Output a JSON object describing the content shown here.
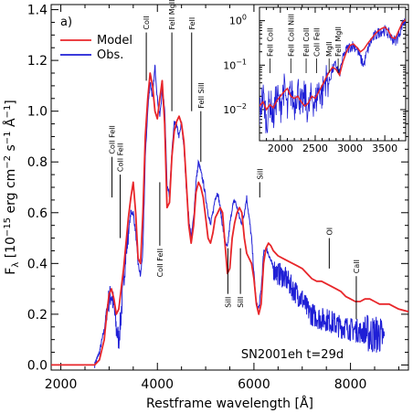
{
  "chart_data": [
    {
      "type": "line",
      "panel_label": "a)",
      "annotation": "SN2001eh  t=29d",
      "xlabel": "Restframe wavelength [Å]",
      "ylabel": "F",
      "ylabel_subscript": "λ",
      "ylabel_units": "[10",
      "ylabel_exp1": "−15",
      "ylabel_units2": " erg cm",
      "ylabel_exp2": "−2",
      "ylabel_units3": " s",
      "ylabel_exp3": "−1",
      "ylabel_units4": " Å",
      "ylabel_exp4": "−1",
      "ylabel_close": "]",
      "xlim": [
        1800,
        9200
      ],
      "ylim": [
        -0.02,
        1.42
      ],
      "x_ticks": [
        2000,
        4000,
        6000,
        8000
      ],
      "x_tick_labels": [
        "2000",
        "4000",
        "6000",
        "8000"
      ],
      "y_ticks": [
        0.0,
        0.2,
        0.4,
        0.6,
        0.8,
        1.0,
        1.2,
        1.4
      ],
      "y_tick_labels": [
        "0.0",
        "0.2",
        "0.4",
        "0.6",
        "0.8",
        "1.0",
        "1.2",
        "1.4"
      ],
      "legend_position": "top-left",
      "colors": {
        "model": "#e8262a",
        "obs": "#1f1fd6"
      },
      "series": [
        {
          "name": "Model",
          "x": [
            1800,
            2700,
            2800,
            2900,
            2950,
            3000,
            3050,
            3100,
            3150,
            3200,
            3250,
            3300,
            3350,
            3400,
            3450,
            3500,
            3550,
            3600,
            3650,
            3700,
            3750,
            3800,
            3850,
            3900,
            3950,
            4000,
            4050,
            4100,
            4150,
            4200,
            4250,
            4300,
            4350,
            4400,
            4450,
            4500,
            4550,
            4600,
            4650,
            4700,
            4750,
            4800,
            4850,
            4900,
            4950,
            5000,
            5050,
            5100,
            5150,
            5200,
            5250,
            5300,
            5350,
            5400,
            5450,
            5500,
            5550,
            5600,
            5650,
            5700,
            5750,
            5800,
            5850,
            5900,
            5950,
            6000,
            6050,
            6100,
            6150,
            6200,
            6250,
            6300,
            6350,
            6400,
            6500,
            6600,
            6700,
            6800,
            6900,
            7000,
            7100,
            7200,
            7300,
            7400,
            7500,
            7600,
            7700,
            7800,
            7900,
            8000,
            8100,
            8200,
            8300,
            8400,
            8500,
            8600,
            8700,
            8800,
            8900,
            9000,
            9200
          ],
          "values": [
            0.0,
            0.0,
            0.02,
            0.1,
            0.2,
            0.28,
            0.3,
            0.26,
            0.2,
            0.22,
            0.3,
            0.38,
            0.48,
            0.58,
            0.66,
            0.72,
            0.6,
            0.42,
            0.4,
            0.6,
            0.9,
            1.05,
            1.15,
            1.1,
            1.0,
            0.97,
            1.05,
            1.12,
            0.95,
            0.62,
            0.64,
            0.82,
            0.92,
            0.96,
            0.98,
            0.95,
            0.88,
            0.72,
            0.55,
            0.48,
            0.55,
            0.68,
            0.72,
            0.7,
            0.66,
            0.58,
            0.5,
            0.48,
            0.52,
            0.58,
            0.6,
            0.62,
            0.6,
            0.48,
            0.36,
            0.38,
            0.5,
            0.56,
            0.6,
            0.62,
            0.6,
            0.5,
            0.44,
            0.42,
            0.4,
            0.34,
            0.24,
            0.2,
            0.24,
            0.4,
            0.46,
            0.48,
            0.47,
            0.45,
            0.43,
            0.42,
            0.41,
            0.4,
            0.39,
            0.38,
            0.36,
            0.34,
            0.33,
            0.33,
            0.32,
            0.31,
            0.3,
            0.29,
            0.27,
            0.26,
            0.25,
            0.25,
            0.26,
            0.26,
            0.25,
            0.24,
            0.24,
            0.24,
            0.23,
            0.22,
            0.21
          ]
        },
        {
          "name": "Obs.",
          "x": [
            2700,
            2800,
            2900,
            2950,
            3000,
            3050,
            3100,
            3150,
            3200,
            3250,
            3300,
            3350,
            3400,
            3450,
            3500,
            3550,
            3600,
            3650,
            3700,
            3750,
            3800,
            3850,
            3900,
            3950,
            4000,
            4050,
            4100,
            4150,
            4200,
            4250,
            4300,
            4350,
            4400,
            4450,
            4500,
            4550,
            4600,
            4650,
            4700,
            4750,
            4800,
            4850,
            4900,
            4950,
            5000,
            5050,
            5100,
            5150,
            5200,
            5250,
            5300,
            5350,
            5400,
            5450,
            5500,
            5550,
            5600,
            5650,
            5700,
            5750,
            5800,
            5850,
            5900,
            5950,
            6000,
            6050,
            6100,
            6150,
            6200,
            6250,
            6300,
            6350,
            6400,
            6500,
            6600,
            6700,
            6800,
            6900,
            7000,
            7100,
            7200,
            7300,
            7400,
            7500,
            7600,
            7700,
            7800,
            7900,
            8000,
            8100,
            8200,
            8300,
            8400,
            8500,
            8600,
            8700
          ],
          "values": [
            0.0,
            0.05,
            0.14,
            0.22,
            0.26,
            0.28,
            0.23,
            0.14,
            0.1,
            0.2,
            0.34,
            0.44,
            0.52,
            0.6,
            0.6,
            0.52,
            0.4,
            0.35,
            0.45,
            0.82,
            1.0,
            1.12,
            1.05,
            1.18,
            1.05,
            0.98,
            1.08,
            1.02,
            0.72,
            0.66,
            0.84,
            0.95,
            0.94,
            0.9,
            0.95,
            0.86,
            0.7,
            0.58,
            0.5,
            0.58,
            0.72,
            0.8,
            0.76,
            0.72,
            0.66,
            0.6,
            0.55,
            0.6,
            0.66,
            0.68,
            0.62,
            0.55,
            0.48,
            0.46,
            0.55,
            0.62,
            0.65,
            0.62,
            0.58,
            0.56,
            0.6,
            0.66,
            0.58,
            0.5,
            0.36,
            0.24,
            0.22,
            0.3,
            0.44,
            0.46,
            0.44,
            0.41,
            0.38,
            0.36,
            0.35,
            0.33,
            0.3,
            0.28,
            0.26,
            0.22,
            0.2,
            0.19,
            0.18,
            0.18,
            0.17,
            0.16,
            0.15,
            0.15,
            0.14,
            0.14,
            0.13,
            0.13,
            0.12,
            0.12,
            0.12,
            0.1
          ]
        }
      ],
      "line_ids": [
        {
          "label": "CoII FeII",
          "x": 3060,
          "y_top": 0.82,
          "y_bottom": 0.66,
          "side": "above"
        },
        {
          "label": "CoII FeII",
          "x": 3230,
          "y_top": 0.75,
          "y_bottom": 0.5,
          "side": "above"
        },
        {
          "label": "CoII",
          "x": 3770,
          "y_top": 1.31,
          "y_bottom": 1.12,
          "side": "above"
        },
        {
          "label": "FeII MgII",
          "x": 4300,
          "y_top": 1.31,
          "y_bottom": 1.0,
          "side": "above"
        },
        {
          "label": "FeII",
          "x": 4710,
          "y_top": 1.31,
          "y_bottom": 1.0,
          "side": "above"
        },
        {
          "label": "FeII SiII",
          "x": 4900,
          "y_top": 1.0,
          "y_bottom": 0.8,
          "side": "above"
        },
        {
          "label": "SiII",
          "x": 6120,
          "y_top": 0.72,
          "y_bottom": 0.66,
          "side": "above"
        },
        {
          "label": "CoII FeII",
          "x": 4050,
          "y_top": 0.47,
          "y_bottom": 0.72,
          "side": "below"
        },
        {
          "label": "SiII",
          "x": 5460,
          "y_top": 0.28,
          "y_bottom": 0.46,
          "side": "below"
        },
        {
          "label": "SiII",
          "x": 5720,
          "y_top": 0.28,
          "y_bottom": 0.46,
          "side": "below"
        },
        {
          "label": "OI",
          "x": 7560,
          "y_top": 0.5,
          "y_bottom": 0.38,
          "side": "above"
        },
        {
          "label": "CaII",
          "x": 8120,
          "y_top": 0.35,
          "y_bottom": 0.18,
          "side": "above"
        }
      ]
    },
    {
      "type": "line",
      "inset": true,
      "xlim": [
        1700,
        3800
      ],
      "ylog": true,
      "ylim": [
        0.002,
        2.0
      ],
      "x_ticks": [
        2000,
        2500,
        3000,
        3500
      ],
      "x_tick_labels": [
        "2000",
        "2500",
        "3000",
        "3500"
      ],
      "y_ticks": [
        0.01,
        0.1,
        1
      ],
      "y_tick_labels": [
        "10",
        "10",
        "10"
      ],
      "y_tick_exps": [
        "−2",
        "−1",
        "0"
      ],
      "series": [
        {
          "name": "Model",
          "x": [
            1700,
            1750,
            1800,
            1850,
            1900,
            1950,
            2000,
            2050,
            2100,
            2150,
            2200,
            2250,
            2300,
            2350,
            2400,
            2450,
            2500,
            2550,
            2600,
            2650,
            2700,
            2750,
            2800,
            2850,
            2900,
            2950,
            3000,
            3050,
            3100,
            3150,
            3200,
            3250,
            3300,
            3350,
            3400,
            3450,
            3500,
            3550,
            3600,
            3650,
            3700,
            3750,
            3800
          ],
          "values": [
            0.012,
            0.015,
            0.01,
            0.013,
            0.011,
            0.016,
            0.02,
            0.025,
            0.03,
            0.02,
            0.018,
            0.02,
            0.015,
            0.012,
            0.014,
            0.02,
            0.018,
            0.025,
            0.035,
            0.05,
            0.07,
            0.09,
            0.08,
            0.06,
            0.12,
            0.2,
            0.28,
            0.3,
            0.25,
            0.2,
            0.23,
            0.3,
            0.38,
            0.48,
            0.58,
            0.66,
            0.72,
            0.6,
            0.42,
            0.4,
            0.6,
            0.9,
            1.05
          ]
        },
        {
          "name": "Obs.",
          "x": [
            1700,
            1750,
            1800,
            1850,
            1900,
            1950,
            2000,
            2050,
            2100,
            2150,
            2200,
            2250,
            2300,
            2350,
            2400,
            2450,
            2500,
            2550,
            2600,
            2650,
            2700,
            2750,
            2800,
            2850,
            2900,
            2950,
            3000,
            3050,
            3100,
            3150,
            3200,
            3250,
            3300,
            3350,
            3400,
            3450,
            3500,
            3550,
            3600,
            3650,
            3700,
            3750,
            3800
          ],
          "values": [
            0.008,
            0.02,
            0.004,
            0.015,
            0.006,
            0.02,
            0.01,
            0.03,
            0.008,
            0.025,
            0.012,
            0.03,
            0.01,
            0.02,
            0.008,
            0.02,
            0.012,
            0.03,
            0.02,
            0.05,
            0.04,
            0.08,
            0.1,
            0.06,
            0.14,
            0.22,
            0.26,
            0.28,
            0.23,
            0.14,
            0.1,
            0.2,
            0.34,
            0.44,
            0.52,
            0.6,
            0.6,
            0.52,
            0.4,
            0.35,
            0.45,
            0.82,
            1.0
          ]
        }
      ],
      "line_ids": [
        {
          "label": "FeII CoII",
          "x": 1850
        },
        {
          "label": "FeII CoII NiII",
          "x": 2150
        },
        {
          "label": "FeII CoII",
          "x": 2370
        },
        {
          "label": "CoII FeII",
          "x": 2520
        },
        {
          "label": "MgII",
          "x": 2700
        },
        {
          "label": "FeII MgII",
          "x": 2830
        }
      ]
    }
  ]
}
